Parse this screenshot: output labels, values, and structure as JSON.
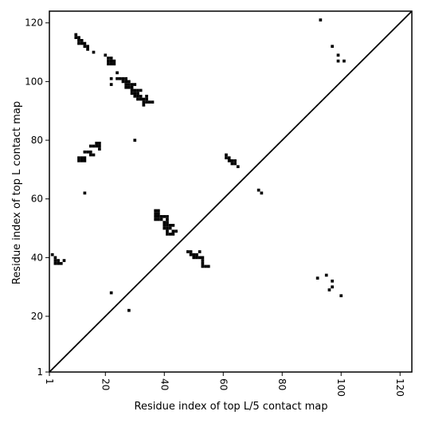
{
  "chart_data": {
    "type": "scatter",
    "marker": "filled-square",
    "xlabel": "Residue index of top L/5 contact map",
    "ylabel": "Residue index of top L contact map",
    "xlim": [
      1,
      124
    ],
    "ylim": [
      1,
      124
    ],
    "xticks": [
      1,
      20,
      40,
      60,
      80,
      100,
      120
    ],
    "yticks": [
      1,
      20,
      40,
      60,
      80,
      100,
      120
    ],
    "xtick_label_rotation": 90,
    "diagonal": {
      "from": [
        1,
        1
      ],
      "to": [
        124,
        124
      ]
    },
    "grid": false,
    "colors": {
      "marker": "#000000",
      "diagonal": "#000000",
      "frame": "#000000"
    },
    "series": [
      {
        "values": [
          [
            10,
            116
          ],
          [
            10,
            115
          ],
          [
            11,
            115
          ],
          [
            11,
            114
          ],
          [
            12,
            114
          ],
          [
            11,
            113
          ],
          [
            12,
            113
          ],
          [
            13,
            113
          ],
          [
            13,
            112
          ],
          [
            14,
            112
          ],
          [
            14,
            111
          ],
          [
            16,
            110
          ],
          [
            20,
            109
          ],
          [
            21,
            108
          ],
          [
            22,
            108
          ],
          [
            21,
            107
          ],
          [
            22,
            107
          ],
          [
            23,
            107
          ],
          [
            21,
            106
          ],
          [
            22,
            106
          ],
          [
            23,
            106
          ],
          [
            24,
            103
          ],
          [
            22,
            101
          ],
          [
            24,
            101
          ],
          [
            25,
            101
          ],
          [
            26,
            101
          ],
          [
            27,
            101
          ],
          [
            22,
            99
          ],
          [
            26,
            100
          ],
          [
            27,
            100
          ],
          [
            28,
            100
          ],
          [
            27,
            99
          ],
          [
            28,
            99
          ],
          [
            29,
            99
          ],
          [
            30,
            99
          ],
          [
            27,
            98
          ],
          [
            28,
            98
          ],
          [
            29,
            98
          ],
          [
            29,
            97
          ],
          [
            30,
            97
          ],
          [
            31,
            97
          ],
          [
            32,
            97
          ],
          [
            29,
            96
          ],
          [
            30,
            96
          ],
          [
            31,
            96
          ],
          [
            30,
            95
          ],
          [
            31,
            95
          ],
          [
            32,
            95
          ],
          [
            31,
            94
          ],
          [
            32,
            94
          ],
          [
            33,
            94
          ],
          [
            34,
            94
          ],
          [
            34,
            95
          ],
          [
            33,
            93
          ],
          [
            34,
            93
          ],
          [
            35,
            93
          ],
          [
            36,
            93
          ],
          [
            33,
            92
          ],
          [
            15,
            78
          ],
          [
            16,
            78
          ],
          [
            17,
            78
          ],
          [
            17,
            79
          ],
          [
            18,
            79
          ],
          [
            18,
            78
          ],
          [
            18,
            77
          ],
          [
            13,
            76
          ],
          [
            14,
            76
          ],
          [
            15,
            76
          ],
          [
            15,
            75
          ],
          [
            16,
            75
          ],
          [
            11,
            74
          ],
          [
            12,
            74
          ],
          [
            13,
            74
          ],
          [
            11,
            73
          ],
          [
            12,
            73
          ],
          [
            13,
            73
          ],
          [
            30,
            80
          ],
          [
            13,
            62
          ],
          [
            37,
            56
          ],
          [
            38,
            56
          ],
          [
            37,
            55
          ],
          [
            38,
            55
          ],
          [
            37,
            54
          ],
          [
            38,
            54
          ],
          [
            39,
            54
          ],
          [
            40,
            54
          ],
          [
            41,
            54
          ],
          [
            37,
            53
          ],
          [
            38,
            53
          ],
          [
            39,
            53
          ],
          [
            41,
            53
          ],
          [
            40,
            52
          ],
          [
            41,
            52
          ],
          [
            40,
            51
          ],
          [
            41,
            51
          ],
          [
            42,
            51
          ],
          [
            43,
            51
          ],
          [
            40,
            50
          ],
          [
            41,
            50
          ],
          [
            42,
            50
          ],
          [
            41,
            49
          ],
          [
            43,
            49
          ],
          [
            44,
            49
          ],
          [
            41,
            48
          ],
          [
            42,
            48
          ],
          [
            43,
            48
          ],
          [
            61,
            75
          ],
          [
            61,
            74
          ],
          [
            62,
            74
          ],
          [
            62,
            73
          ],
          [
            63,
            73
          ],
          [
            64,
            73
          ],
          [
            63,
            72
          ],
          [
            64,
            72
          ],
          [
            65,
            71
          ],
          [
            72,
            63
          ],
          [
            73,
            62
          ],
          [
            48,
            42
          ],
          [
            49,
            42
          ],
          [
            49,
            41
          ],
          [
            50,
            41
          ],
          [
            51,
            41
          ],
          [
            52,
            42
          ],
          [
            50,
            40
          ],
          [
            51,
            40
          ],
          [
            52,
            40
          ],
          [
            53,
            40
          ],
          [
            53,
            39
          ],
          [
            53,
            38
          ],
          [
            53,
            37
          ],
          [
            54,
            37
          ],
          [
            55,
            37
          ],
          [
            2,
            41
          ],
          [
            3,
            40
          ],
          [
            3,
            39
          ],
          [
            4,
            39
          ],
          [
            3,
            38
          ],
          [
            4,
            38
          ],
          [
            5,
            38
          ],
          [
            6,
            39
          ],
          [
            22,
            28
          ],
          [
            28,
            22
          ],
          [
            93,
            121
          ],
          [
            97,
            112
          ],
          [
            99,
            109
          ],
          [
            99,
            107
          ],
          [
            101,
            107
          ],
          [
            92,
            33
          ],
          [
            95,
            34
          ],
          [
            97,
            32
          ],
          [
            97,
            30
          ],
          [
            96,
            29
          ],
          [
            100,
            27
          ]
        ]
      }
    ]
  }
}
